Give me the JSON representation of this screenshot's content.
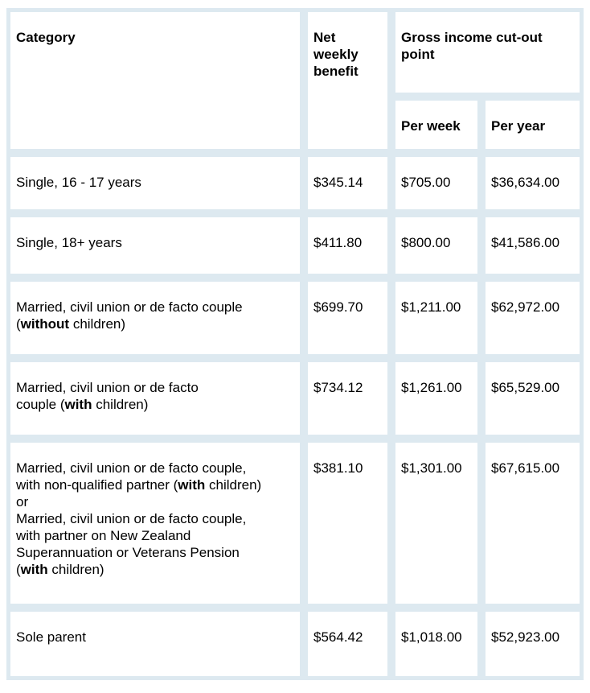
{
  "colors": {
    "border": "#dde9f0",
    "cell_bg": "#ffffff",
    "text": "#000000",
    "page_bg": "#ffffff"
  },
  "table": {
    "headers": {
      "category": "Category",
      "net_weekly": "Net\nweekly\nbenefit",
      "gross": "Gross income cut-out\npoint",
      "per_week": "Per week",
      "per_year": "Per year"
    },
    "rows": [
      {
        "category": [
          {
            "text": "Single, 16 - 17 years",
            "bold": false
          }
        ],
        "net_weekly": "$345.14",
        "per_week": "$705.00",
        "per_year": "$36,634.00"
      },
      {
        "category": [
          {
            "text": "Single, 18+ years",
            "bold": false
          }
        ],
        "net_weekly": "$411.80",
        "per_week": "$800.00",
        "per_year": "$41,586.00"
      },
      {
        "category": [
          {
            "text": "Married, civil union or de facto couple\n(",
            "bold": false
          },
          {
            "text": "without",
            "bold": true
          },
          {
            "text": " children)",
            "bold": false
          }
        ],
        "net_weekly": "$699.70",
        "per_week": "$1,211.00",
        "per_year": "$62,972.00"
      },
      {
        "category": [
          {
            "text": "Married, civil union or de facto\ncouple (",
            "bold": false
          },
          {
            "text": "with",
            "bold": true
          },
          {
            "text": " children)",
            "bold": false
          }
        ],
        "net_weekly": "$734.12",
        "per_week": "$1,261.00",
        "per_year": "$65,529.00"
      },
      {
        "category": [
          {
            "text": "Married, civil union or de facto couple,\nwith non-qualified partner (",
            "bold": false
          },
          {
            "text": "with",
            "bold": true
          },
          {
            "text": " children)\nor\nMarried, civil union or de facto couple,\nwith partner on New Zealand\nSuperannuation or Veterans Pension\n(",
            "bold": false
          },
          {
            "text": "with",
            "bold": true
          },
          {
            "text": " children)",
            "bold": false
          }
        ],
        "net_weekly": "$381.10",
        "per_week": "$1,301.00",
        "per_year": "$67,615.00"
      },
      {
        "category": [
          {
            "text": "Sole parent",
            "bold": false
          }
        ],
        "net_weekly": "$564.42",
        "per_week": "$1,018.00",
        "per_year": "$52,923.00"
      }
    ]
  }
}
